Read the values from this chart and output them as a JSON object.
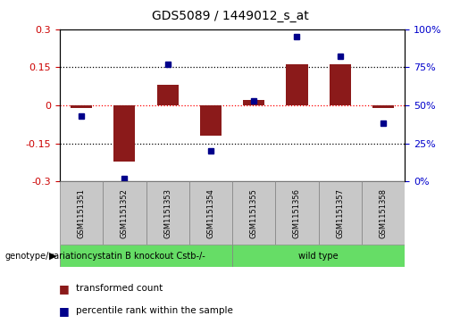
{
  "title": "GDS5089 / 1449012_s_at",
  "samples": [
    "GSM1151351",
    "GSM1151352",
    "GSM1151353",
    "GSM1151354",
    "GSM1151355",
    "GSM1151356",
    "GSM1151357",
    "GSM1151358"
  ],
  "transformed_count": [
    -0.01,
    -0.22,
    0.08,
    -0.12,
    0.02,
    0.16,
    0.16,
    -0.01
  ],
  "percentile_rank": [
    43,
    2,
    77,
    20,
    53,
    95,
    82,
    38
  ],
  "ylim_left": [
    -0.3,
    0.3
  ],
  "ylim_right": [
    0,
    100
  ],
  "yticks_left": [
    -0.3,
    -0.15,
    0,
    0.15,
    0.3
  ],
  "yticks_right": [
    0,
    25,
    50,
    75,
    100
  ],
  "hlines_dotted": [
    -0.15,
    0.15
  ],
  "bar_color": "#8B1A1A",
  "dot_color": "#00008B",
  "group1_samples": [
    0,
    1,
    2,
    3
  ],
  "group2_samples": [
    4,
    5,
    6,
    7
  ],
  "group1_label": "cystatin B knockout Cstb-/-",
  "group2_label": "wild type",
  "group_color": "#66DD66",
  "sample_box_color": "#C8C8C8",
  "genotype_label": "genotype/variation",
  "legend_bar_label": "transformed count",
  "legend_dot_label": "percentile rank within the sample",
  "bg_color": "#FFFFFF",
  "tick_color_left": "#CC0000",
  "tick_color_right": "#0000CC",
  "right_ytick_labels": [
    "0%",
    "25%",
    "50%",
    "75%",
    "100%"
  ],
  "bar_width": 0.5
}
